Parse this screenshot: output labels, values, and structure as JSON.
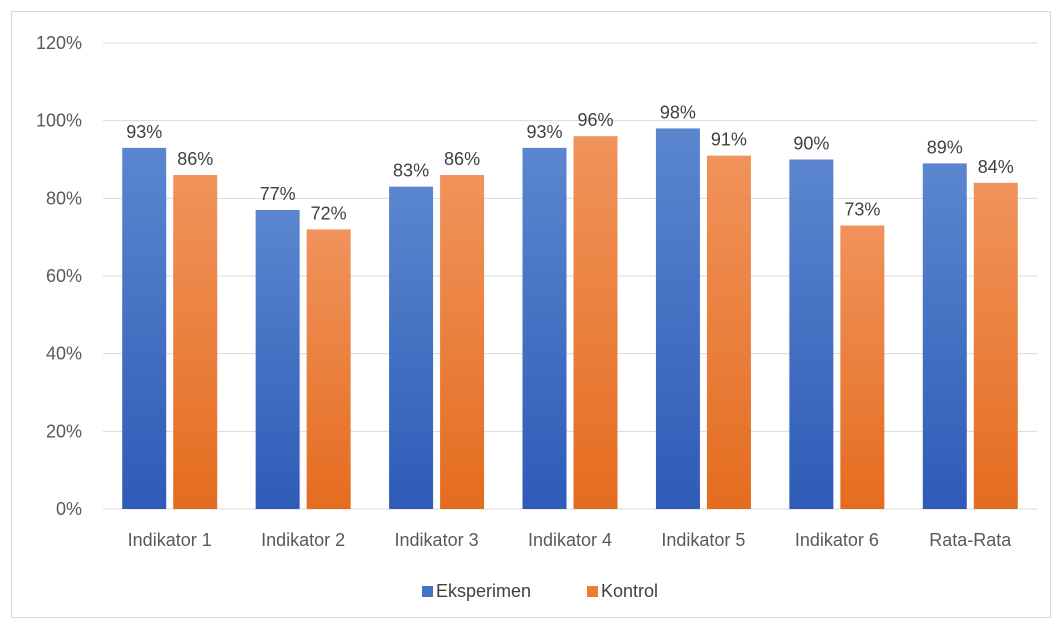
{
  "chart_data": {
    "type": "bar",
    "categories": [
      "Indikator 1",
      "Indikator 2",
      "Indikator 3",
      "Indikator 4",
      "Indikator 5",
      "Indikator 6",
      "Rata-Rata"
    ],
    "series": [
      {
        "name": "Eksperimen",
        "values": [
          93,
          77,
          83,
          93,
          98,
          90,
          89
        ],
        "labels": [
          "93%",
          "77%",
          "83%",
          "93%",
          "98%",
          "90%",
          "89%"
        ]
      },
      {
        "name": "Kontrol",
        "values": [
          86,
          72,
          86,
          96,
          91,
          73,
          84
        ],
        "labels": [
          "86%",
          "72%",
          "86%",
          "96%",
          "91%",
          "73%",
          "84%"
        ]
      }
    ],
    "title": "",
    "xlabel": "",
    "ylabel": "",
    "ylim": [
      0,
      120
    ],
    "yticks": [
      0,
      20,
      40,
      60,
      80,
      100,
      120
    ],
    "ytick_labels": [
      "0%",
      "20%",
      "40%",
      "60%",
      "80%",
      "100%",
      "120%"
    ],
    "grid": true,
    "legend": "bottom",
    "colors": {
      "Eksperimen": "#4472c4",
      "Kontrol": "#ed7d31"
    }
  }
}
